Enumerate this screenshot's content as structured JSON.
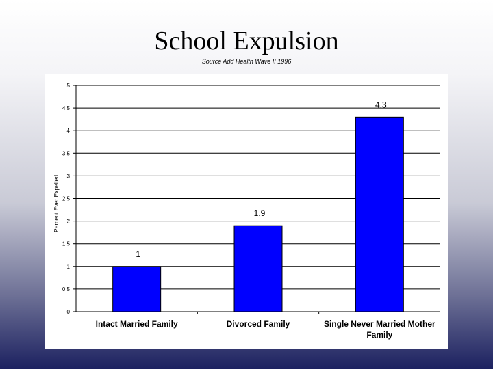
{
  "slide": {
    "title": "School Expulsion",
    "subtitle": "Source Add Health Wave II 1996"
  },
  "chart_data": {
    "type": "bar",
    "title": "",
    "xlabel": "",
    "ylabel": "Percent Ever Expelled",
    "ylim": [
      0,
      5
    ],
    "ytick_step": 0.5,
    "yticks": [
      "0",
      "0.5",
      "1",
      "1.5",
      "2",
      "2.5",
      "3",
      "3.5",
      "4",
      "4.5",
      "5"
    ],
    "grid": true,
    "legend": "none",
    "categories": [
      [
        "Intact Married Family"
      ],
      [
        "Divorced Family"
      ],
      [
        "Single Never Married Mother",
        "Family"
      ]
    ],
    "values": [
      1,
      1.9,
      4.3
    ],
    "data_labels": [
      "1",
      "1.9",
      "4.3"
    ],
    "bar_color": "#0000ff"
  }
}
